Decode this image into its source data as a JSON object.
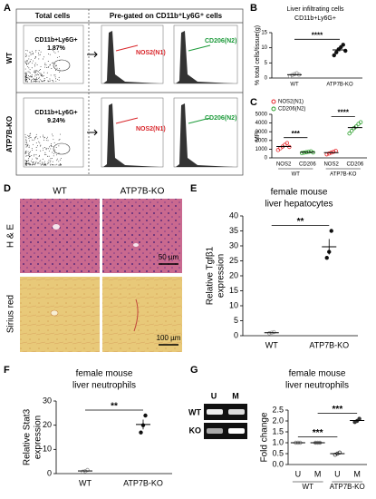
{
  "panel_a": {
    "label": "A",
    "col_total": "Total cells",
    "col_gated": "Pre-gated on CD11b⁺Ly6G⁺ cells",
    "rows": [
      {
        "label": "WT",
        "gate": "CD11b+Ly6G+",
        "percent": "1.87%",
        "n1": "NOS2(N1)",
        "n2": "CD206(N2)"
      },
      {
        "label": "ATP7B-KO",
        "gate": "CD11b+Ly6G+",
        "percent": "9.24%",
        "n1": "NOS2(N1)",
        "n2": "CD206(N2)"
      }
    ]
  },
  "panel_d": {
    "label": "D",
    "columns": [
      "WT",
      "ATP7B-KO"
    ],
    "rows": [
      "H & E",
      "Sirius red"
    ],
    "scale_bars": [
      "50 µm",
      "100 µm"
    ]
  },
  "panel_b": {
    "type": "strip",
    "label": "B",
    "title": [
      "Liver infiltrating cells",
      "CD11b+Ly6G+"
    ],
    "ylabel": [
      "% total cells/tissue(g)"
    ],
    "ylim": [
      0,
      15
    ],
    "yticks": [
      0,
      5,
      10,
      15
    ],
    "significance": [
      "****"
    ],
    "groups": [
      {
        "name": "WT",
        "color": "#999999",
        "mean": 1.1,
        "sem": 0.2,
        "points": [
          0.6,
          1.0,
          1.3,
          1.6,
          1.1
        ]
      },
      {
        "name": "ATP7B-KO",
        "color": "#111111",
        "mean": 9.3,
        "sem": 0.5,
        "points": [
          7.5,
          8.5,
          9.5,
          10.2,
          11.0,
          9.0
        ]
      }
    ]
  },
  "panel_c": {
    "type": "strip",
    "label": "C",
    "ylabel": [
      "MFI"
    ],
    "ylim": [
      0,
      5000
    ],
    "yticks": [
      0,
      1000,
      2000,
      3000,
      4000,
      5000
    ],
    "legend": [
      {
        "name": "NOS2(N1)",
        "color": "#e8262b"
      },
      {
        "name": "CD206(N2)",
        "color": "#2ca02c"
      }
    ],
    "group_labels": [
      "WT",
      "ATP7B-KO"
    ],
    "significance": [
      "***",
      "****"
    ],
    "groups": [
      {
        "name": "NOS2",
        "color": "#e8262b",
        "mean": 1300,
        "sem": 120,
        "points": [
          900,
          1100,
          1300,
          1500,
          1700,
          1250
        ]
      },
      {
        "name": "CD206",
        "color": "#2ca02c",
        "mean": 645,
        "sem": 30,
        "points": [
          550,
          600,
          650,
          700,
          750,
          620
        ]
      },
      {
        "name": "NOS2",
        "color": "#e8262b",
        "mean": 600,
        "sem": 70,
        "points": [
          400,
          500,
          600,
          700,
          800
        ]
      },
      {
        "name": "CD206",
        "color": "#2ca02c",
        "mean": 3480,
        "sem": 200,
        "points": [
          2800,
          3100,
          3400,
          3600,
          3900,
          4100
        ]
      }
    ]
  },
  "panel_e": {
    "type": "strip",
    "label": "E",
    "title": [
      "female mouse",
      "liver hepatocytes"
    ],
    "ylabel": [
      "Relative Tgfβ1",
      "expression"
    ],
    "ylim": [
      0,
      40
    ],
    "yticks": [
      0,
      5,
      10,
      15,
      20,
      25,
      30,
      35,
      40
    ],
    "significance": [
      "**"
    ],
    "groups": [
      {
        "name": "WT",
        "color": "#999999",
        "mean": 1.0,
        "sem": 0.1,
        "points": [
          0.8,
          1.0,
          1.2
        ]
      },
      {
        "name": "ATP7B-KO",
        "color": "#111111",
        "mean": 29.7,
        "sem": 2.6,
        "points": [
          26,
          28,
          35
        ]
      }
    ]
  },
  "panel_f": {
    "type": "strip",
    "label": "F",
    "title": [
      "female mouse",
      "liver neutrophils"
    ],
    "ylabel": [
      "Relative Stat3",
      "expression"
    ],
    "ylim": [
      0,
      30
    ],
    "yticks": [
      0,
      10,
      20,
      30
    ],
    "significance": [
      "**"
    ],
    "groups": [
      {
        "name": "WT",
        "color": "#999999",
        "mean": 1.1,
        "sem": 0.2,
        "points": [
          0.8,
          1.0,
          1.5
        ]
      },
      {
        "name": "ATP7B-KO",
        "color": "#111111",
        "mean": 20.3,
        "sem": 2.0,
        "points": [
          17,
          20,
          24
        ]
      }
    ]
  },
  "panel_g": {
    "type": "strip",
    "label": "G",
    "gel": {
      "columns": [
        "U",
        "M"
      ],
      "rows": [
        "WT",
        "KO"
      ]
    },
    "title": [
      "female mouse",
      "liver neutrophils"
    ],
    "ylabel": [
      "Fold change"
    ],
    "ylim": [
      0,
      2.5
    ],
    "yticks": [
      {
        "value": 0,
        "label": "0.0"
      },
      {
        "value": 0.5,
        "label": "0.5"
      },
      {
        "value": 1,
        "label": "1.0"
      },
      {
        "value": 1.5,
        "label": "1.5"
      },
      {
        "value": 2,
        "label": "2.0"
      },
      {
        "value": 2.5,
        "label": "2.5"
      }
    ],
    "group_labels": [
      "WT",
      "ATP7B-KO"
    ],
    "significance": [
      "***",
      "***"
    ],
    "groups": [
      {
        "name": "U",
        "color": "#888888",
        "mean": 1.0,
        "sem": 0.02,
        "points": [
          1.0,
          1.0,
          1.0
        ]
      },
      {
        "name": "M",
        "color": "#888888",
        "mean": 1.0,
        "sem": 0.02,
        "points": [
          1.0,
          1.0,
          1.0
        ]
      },
      {
        "name": "U",
        "color": "#333333",
        "mean": 0.5,
        "sem": 0.03,
        "points": [
          0.45,
          0.5,
          0.55
        ]
      },
      {
        "name": "M",
        "color": "#333333",
        "mean": 2.02,
        "sem": 0.04,
        "points": [
          1.95,
          2.0,
          2.1
        ]
      }
    ]
  }
}
